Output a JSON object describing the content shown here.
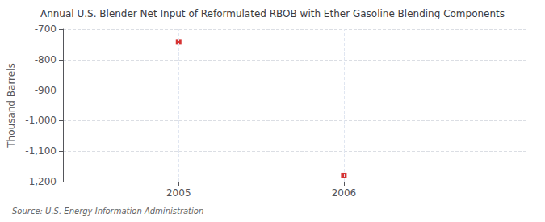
{
  "chart_data": {
    "type": "scatter",
    "title": "Annual U.S. Blender Net Input of Reformulated RBOB with Ether Gasoline Blending Components",
    "ylabel": "Thousand Barrels",
    "source": "Source: U.S. Energy Information Administration",
    "x": [
      2005,
      2006
    ],
    "values": [
      -742,
      -1180
    ],
    "color": "#cc0000",
    "marker": "square",
    "xlim": [
      2004.3,
      2007.1
    ],
    "xticks": [
      2005,
      2006
    ],
    "ylim": [
      -1200,
      -700
    ],
    "yticks": [
      -700,
      -800,
      -900,
      {
        "value": -1000,
        "label": "-1,000"
      },
      {
        "value": -1100,
        "label": "-1,100"
      },
      {
        "value": -1200,
        "label": "-1,200"
      }
    ],
    "grid": true
  }
}
